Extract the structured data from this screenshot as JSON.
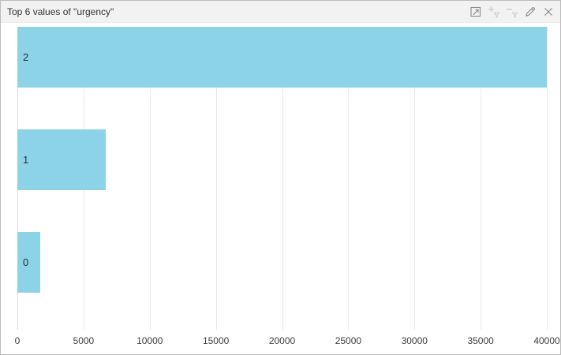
{
  "panel": {
    "title": "Top 6 values of \"urgency\"",
    "toolbar": {
      "icons": [
        {
          "name": "expand-icon",
          "enabled": true
        },
        {
          "name": "add-filter-icon",
          "enabled": false
        },
        {
          "name": "remove-filter-icon",
          "enabled": false
        },
        {
          "name": "edit-icon",
          "enabled": true
        },
        {
          "name": "close-icon",
          "enabled": true
        }
      ]
    }
  },
  "colors": {
    "bar": "#8cd3e8",
    "gridline": "#e9e9e9",
    "axis_line": "#dcdcdc",
    "titlebar_bg": "#f2f2f2",
    "icon_enabled": "#8a8a8a",
    "icon_disabled": "#cccccc"
  },
  "chart_data": {
    "type": "bar",
    "orientation": "horizontal",
    "title": "Top 6 values of \"urgency\"",
    "categories": [
      "2",
      "1",
      "0"
    ],
    "values": [
      40000,
      6700,
      1700
    ],
    "xlabel": "",
    "ylabel": "",
    "xlim": [
      0,
      40000
    ],
    "xticks": [
      0,
      5000,
      10000,
      15000,
      20000,
      25000,
      30000,
      35000,
      40000
    ],
    "grid": true,
    "legend_position": "none"
  }
}
